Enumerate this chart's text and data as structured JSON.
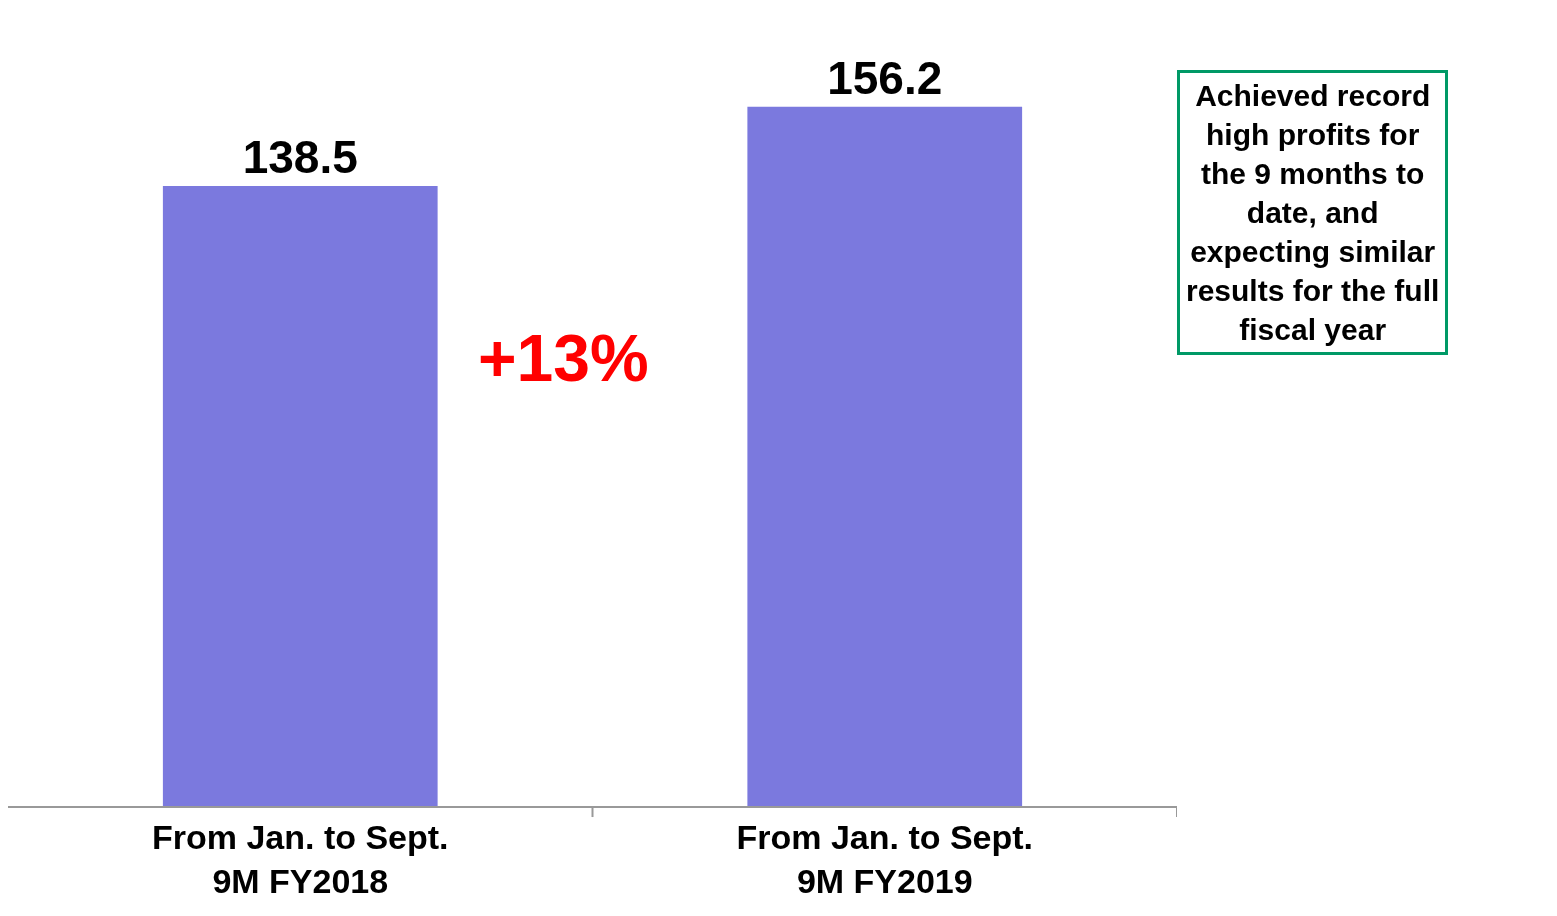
{
  "chart_data": {
    "type": "bar",
    "categories": [
      "From Jan. to Sept.\n9M FY2018",
      "From Jan. to Sept.\n9M FY2019"
    ],
    "values": [
      138.5,
      156.2
    ],
    "color": "#7b79de",
    "data_labels": true,
    "tick_labels": "x",
    "annotations": [
      "+13%",
      "Achieved record\nhigh profits for\nthe 9 months to\ndate, and\nexpecting similar\nresults for the full\nfiscal year"
    ]
  }
}
